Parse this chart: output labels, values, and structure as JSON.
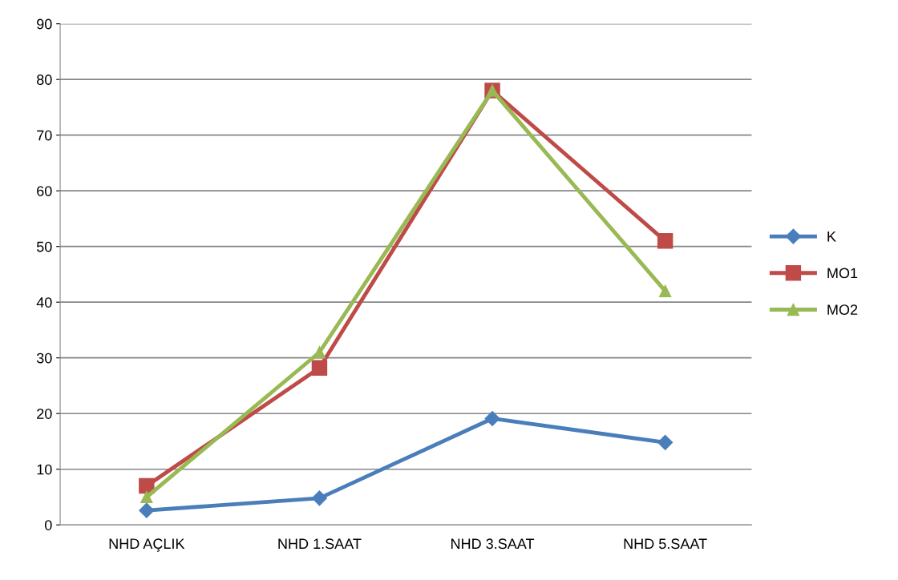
{
  "chart_data": {
    "type": "line",
    "categories": [
      "NHD AÇLIK",
      "NHD 1.SAAT",
      "NHD 3.SAAT",
      "NHD 5.SAAT"
    ],
    "series": [
      {
        "name": "K",
        "color": "#4a7ebb",
        "marker": "diamond",
        "values": [
          2.6,
          4.8,
          19.1,
          14.8
        ]
      },
      {
        "name": "MO1",
        "color": "#be4b48",
        "marker": "square",
        "values": [
          7,
          28.2,
          78,
          51
        ]
      },
      {
        "name": "MO2",
        "color": "#98b954",
        "marker": "triangle",
        "values": [
          5,
          31,
          78,
          42
        ]
      }
    ],
    "ylim": [
      0,
      90
    ],
    "yticks": [
      0,
      10,
      20,
      30,
      40,
      50,
      60,
      70,
      80,
      90
    ],
    "grid": "y",
    "legend": "right",
    "line_style": "solid"
  }
}
